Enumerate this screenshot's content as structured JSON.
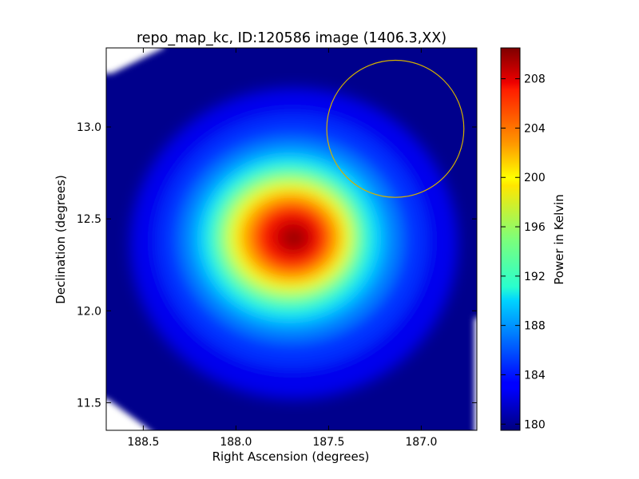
{
  "chart_data": {
    "type": "heatmap",
    "title": "repo_map_kc, ID:120586 image (1406.3,XX)",
    "xlabel": "Right Ascension (degrees)",
    "ylabel": "Declination (degrees)",
    "colorbar_label": "Power in Kelvin",
    "colormap": "jet",
    "xlim": [
      188.7,
      186.7
    ],
    "ylim": [
      11.35,
      13.43
    ],
    "x_ticks": [
      188.5,
      188.0,
      187.5,
      187.0
    ],
    "x_tick_labels": [
      "188.5",
      "188.0",
      "187.5",
      "187.0"
    ],
    "y_ticks": [
      11.5,
      12.0,
      12.5,
      13.0
    ],
    "y_tick_labels": [
      "11.5",
      "12.0",
      "12.5",
      "13.0"
    ],
    "colorbar_range": [
      179.5,
      210.5
    ],
    "colorbar_ticks": [
      180,
      184,
      188,
      192,
      196,
      200,
      204,
      208
    ],
    "colorbar_tick_labels": [
      "180",
      "184",
      "188",
      "192",
      "196",
      "200",
      "204",
      "208"
    ],
    "peak": {
      "ra": 187.67,
      "dec": 12.39,
      "value": 209.5
    },
    "background_value": 181,
    "circle": {
      "ra": 187.14,
      "dec": 12.99,
      "radius_deg": 0.37,
      "color": "#d4b000"
    }
  }
}
